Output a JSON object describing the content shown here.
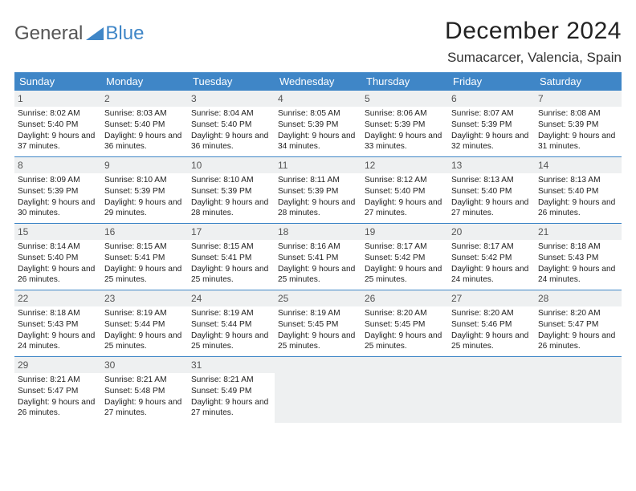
{
  "brand": {
    "word1": "General",
    "word2": "Blue",
    "accent_color": "#3f86c7",
    "text_color": "#555555"
  },
  "title": "December 2024",
  "location": "Sumacarcer, Valencia, Spain",
  "colors": {
    "header_bg": "#3f86c7",
    "header_text": "#ffffff",
    "daynum_bg": "#eef0f1",
    "border": "#3f86c7",
    "body_text": "#222222",
    "page_bg": "#ffffff"
  },
  "day_names": [
    "Sunday",
    "Monday",
    "Tuesday",
    "Wednesday",
    "Thursday",
    "Friday",
    "Saturday"
  ],
  "weeks": [
    [
      {
        "n": "1",
        "sunrise": "8:02 AM",
        "sunset": "5:40 PM",
        "daylight": "9 hours and 37 minutes."
      },
      {
        "n": "2",
        "sunrise": "8:03 AM",
        "sunset": "5:40 PM",
        "daylight": "9 hours and 36 minutes."
      },
      {
        "n": "3",
        "sunrise": "8:04 AM",
        "sunset": "5:40 PM",
        "daylight": "9 hours and 36 minutes."
      },
      {
        "n": "4",
        "sunrise": "8:05 AM",
        "sunset": "5:39 PM",
        "daylight": "9 hours and 34 minutes."
      },
      {
        "n": "5",
        "sunrise": "8:06 AM",
        "sunset": "5:39 PM",
        "daylight": "9 hours and 33 minutes."
      },
      {
        "n": "6",
        "sunrise": "8:07 AM",
        "sunset": "5:39 PM",
        "daylight": "9 hours and 32 minutes."
      },
      {
        "n": "7",
        "sunrise": "8:08 AM",
        "sunset": "5:39 PM",
        "daylight": "9 hours and 31 minutes."
      }
    ],
    [
      {
        "n": "8",
        "sunrise": "8:09 AM",
        "sunset": "5:39 PM",
        "daylight": "9 hours and 30 minutes."
      },
      {
        "n": "9",
        "sunrise": "8:10 AM",
        "sunset": "5:39 PM",
        "daylight": "9 hours and 29 minutes."
      },
      {
        "n": "10",
        "sunrise": "8:10 AM",
        "sunset": "5:39 PM",
        "daylight": "9 hours and 28 minutes."
      },
      {
        "n": "11",
        "sunrise": "8:11 AM",
        "sunset": "5:39 PM",
        "daylight": "9 hours and 28 minutes."
      },
      {
        "n": "12",
        "sunrise": "8:12 AM",
        "sunset": "5:40 PM",
        "daylight": "9 hours and 27 minutes."
      },
      {
        "n": "13",
        "sunrise": "8:13 AM",
        "sunset": "5:40 PM",
        "daylight": "9 hours and 27 minutes."
      },
      {
        "n": "14",
        "sunrise": "8:13 AM",
        "sunset": "5:40 PM",
        "daylight": "9 hours and 26 minutes."
      }
    ],
    [
      {
        "n": "15",
        "sunrise": "8:14 AM",
        "sunset": "5:40 PM",
        "daylight": "9 hours and 26 minutes."
      },
      {
        "n": "16",
        "sunrise": "8:15 AM",
        "sunset": "5:41 PM",
        "daylight": "9 hours and 25 minutes."
      },
      {
        "n": "17",
        "sunrise": "8:15 AM",
        "sunset": "5:41 PM",
        "daylight": "9 hours and 25 minutes."
      },
      {
        "n": "18",
        "sunrise": "8:16 AM",
        "sunset": "5:41 PM",
        "daylight": "9 hours and 25 minutes."
      },
      {
        "n": "19",
        "sunrise": "8:17 AM",
        "sunset": "5:42 PM",
        "daylight": "9 hours and 25 minutes."
      },
      {
        "n": "20",
        "sunrise": "8:17 AM",
        "sunset": "5:42 PM",
        "daylight": "9 hours and 24 minutes."
      },
      {
        "n": "21",
        "sunrise": "8:18 AM",
        "sunset": "5:43 PM",
        "daylight": "9 hours and 24 minutes."
      }
    ],
    [
      {
        "n": "22",
        "sunrise": "8:18 AM",
        "sunset": "5:43 PM",
        "daylight": "9 hours and 24 minutes."
      },
      {
        "n": "23",
        "sunrise": "8:19 AM",
        "sunset": "5:44 PM",
        "daylight": "9 hours and 25 minutes."
      },
      {
        "n": "24",
        "sunrise": "8:19 AM",
        "sunset": "5:44 PM",
        "daylight": "9 hours and 25 minutes."
      },
      {
        "n": "25",
        "sunrise": "8:19 AM",
        "sunset": "5:45 PM",
        "daylight": "9 hours and 25 minutes."
      },
      {
        "n": "26",
        "sunrise": "8:20 AM",
        "sunset": "5:45 PM",
        "daylight": "9 hours and 25 minutes."
      },
      {
        "n": "27",
        "sunrise": "8:20 AM",
        "sunset": "5:46 PM",
        "daylight": "9 hours and 25 minutes."
      },
      {
        "n": "28",
        "sunrise": "8:20 AM",
        "sunset": "5:47 PM",
        "daylight": "9 hours and 26 minutes."
      }
    ],
    [
      {
        "n": "29",
        "sunrise": "8:21 AM",
        "sunset": "5:47 PM",
        "daylight": "9 hours and 26 minutes."
      },
      {
        "n": "30",
        "sunrise": "8:21 AM",
        "sunset": "5:48 PM",
        "daylight": "9 hours and 27 minutes."
      },
      {
        "n": "31",
        "sunrise": "8:21 AM",
        "sunset": "5:49 PM",
        "daylight": "9 hours and 27 minutes."
      },
      null,
      null,
      null,
      null
    ]
  ],
  "labels": {
    "sunrise": "Sunrise: ",
    "sunset": "Sunset: ",
    "daylight": "Daylight: "
  }
}
